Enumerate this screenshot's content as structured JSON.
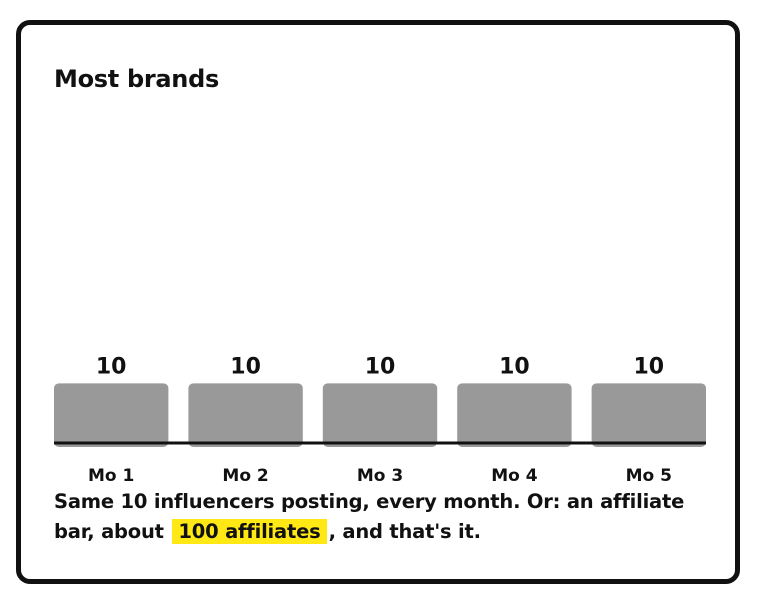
{
  "card": {
    "title": "Most brands",
    "caption_pre": "Same 10 influencers posting, every month. Or: an affiliate bar, about ",
    "caption_highlight": "100 affiliates",
    "caption_post": ", and that's it."
  },
  "colors": {
    "bar": "#999999",
    "axis": "#111111",
    "text": "#111111",
    "highlight": "#ffe814"
  },
  "chart_data": {
    "type": "bar",
    "title": "Most brands",
    "categories": [
      "Mo 1",
      "Mo 2",
      "Mo 3",
      "Mo 4",
      "Mo 5"
    ],
    "values": [
      10,
      10,
      10,
      10,
      10
    ],
    "data_labels": [
      "10",
      "10",
      "10",
      "10",
      "10"
    ],
    "ylim": [
      0,
      60
    ],
    "grid": false,
    "xlabel": "",
    "ylabel": ""
  }
}
